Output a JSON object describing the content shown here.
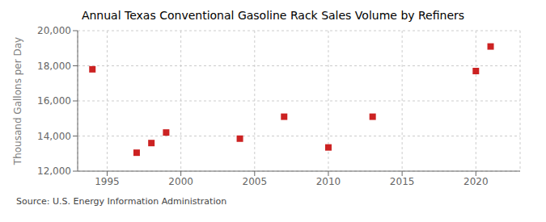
{
  "chart_data": {
    "type": "scatter",
    "title": "Annual Texas Conventional Gasoline Rack Sales Volume by Refiners",
    "y_label": "Thousand Gallons per Day",
    "annotations": [
      "Source: U.S. Energy Information Administration"
    ],
    "x": [
      1994,
      1997,
      1998,
      1999,
      2004,
      2007,
      2010,
      2013,
      2020,
      2021
    ],
    "values": [
      17800,
      13050,
      13600,
      14200,
      13850,
      15100,
      13350,
      15100,
      17700,
      19100
    ],
    "color": "#cc2222",
    "marker": "square",
    "xlim": [
      1993,
      2023
    ],
    "xticks": [
      1995,
      2000,
      2005,
      2010,
      2015,
      2020
    ],
    "ylim": [
      12000,
      20000
    ],
    "yticks": [
      {
        "value": 12000,
        "label": "12,000"
      },
      {
        "value": 14000,
        "label": "14,000"
      },
      {
        "value": 16000,
        "label": "16,000"
      },
      {
        "value": 18000,
        "label": "18,000"
      },
      {
        "value": 20000,
        "label": "20,000"
      }
    ],
    "grid": true
  }
}
